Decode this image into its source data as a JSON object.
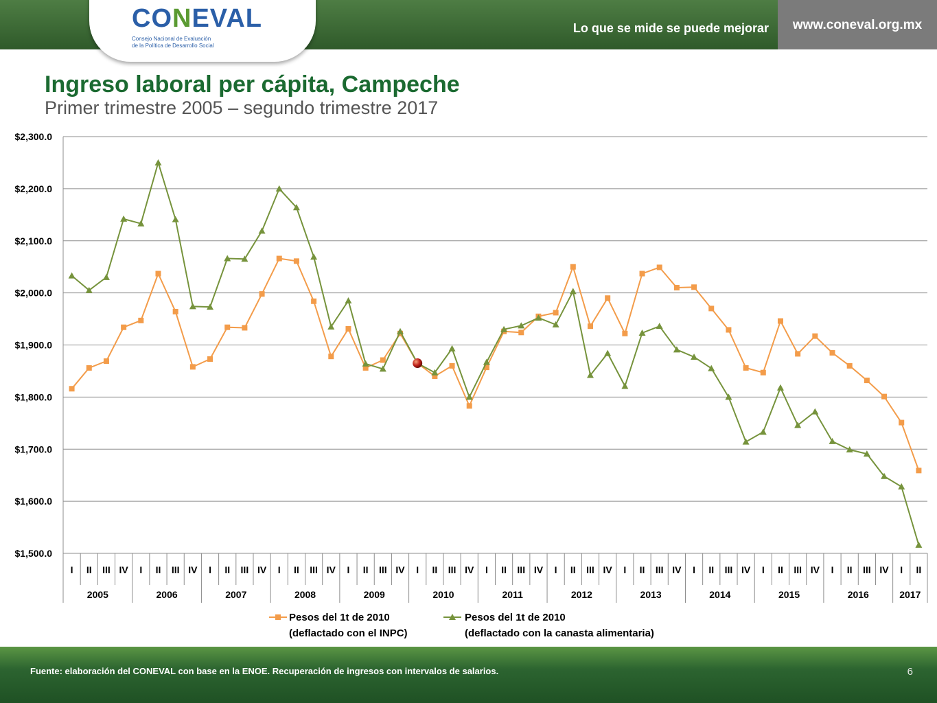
{
  "header": {
    "logo_text_a": "CO",
    "logo_text_b": "N",
    "logo_text_c": "EVAL",
    "logo_subtitle_1": "Consejo Nacional de Evaluación",
    "logo_subtitle_2": "de la Política de Desarrollo Social",
    "slogan": "Lo que se mide se puede mejorar",
    "url": "www.coneval.org.mx"
  },
  "slide": {
    "title": "Ingreso laboral per cápita, Campeche",
    "subtitle": "Primer trimestre 2005 – segundo trimestre 2017",
    "source": "Fuente: elaboración del CONEVAL con base en la ENOE. Recuperación de ingresos con intervalos de salarios.",
    "page_number": "6"
  },
  "colors": {
    "inpc": "#f39c4a",
    "canasta": "#76933c",
    "marker_point": "#c0201a"
  },
  "chart_data": {
    "type": "line",
    "ylim": [
      1500,
      2300
    ],
    "yticks": [
      "$1,500.0",
      "$1,600.0",
      "$1,700.0",
      "$1,800.0",
      "$1,900.0",
      "$2,000.0",
      "$2,100.0",
      "$2,200.0",
      "$2,300.0"
    ],
    "ytick_values": [
      1500,
      1600,
      1700,
      1800,
      1900,
      2000,
      2100,
      2200,
      2300
    ],
    "grid": true,
    "legend_position": "bottom",
    "quarters": [
      "I",
      "II",
      "III",
      "IV",
      "I",
      "II",
      "III",
      "IV",
      "I",
      "II",
      "III",
      "IV",
      "I",
      "II",
      "III",
      "IV",
      "I",
      "II",
      "III",
      "IV",
      "I",
      "II",
      "III",
      "IV",
      "I",
      "II",
      "III",
      "IV",
      "I",
      "II",
      "III",
      "IV",
      "I",
      "II",
      "III",
      "IV",
      "I",
      "II",
      "III",
      "IV",
      "I",
      "II",
      "III",
      "IV",
      "I",
      "II",
      "III",
      "IV",
      "I",
      "II"
    ],
    "years": [
      {
        "label": "2005",
        "span": 4
      },
      {
        "label": "2006",
        "span": 4
      },
      {
        "label": "2007",
        "span": 4
      },
      {
        "label": "2008",
        "span": 4
      },
      {
        "label": "2009",
        "span": 4
      },
      {
        "label": "2010",
        "span": 4
      },
      {
        "label": "2011",
        "span": 4
      },
      {
        "label": "2012",
        "span": 4
      },
      {
        "label": "2013",
        "span": 4
      },
      {
        "label": "2014",
        "span": 4
      },
      {
        "label": "2015",
        "span": 4
      },
      {
        "label": "2016",
        "span": 4
      },
      {
        "label": "2017",
        "span": 2
      }
    ],
    "series": [
      {
        "name_line1": "Pesos del 1t de 2010",
        "name_line2": "(deflactado con el INPC)",
        "marker": "square",
        "values": [
          1816,
          1856,
          1869,
          1934,
          1947,
          2037,
          1964,
          1858,
          1873,
          1934,
          1933,
          1998,
          2066,
          2061,
          1984,
          1878,
          1931,
          1856,
          1871,
          1922,
          1865,
          1840,
          1860,
          1783,
          1857,
          1926,
          1924,
          1955,
          1962,
          2050,
          1936,
          1990,
          1922,
          2037,
          2049,
          2010,
          2011,
          1970,
          1929,
          1856,
          1847,
          1946,
          1883,
          1917,
          1885,
          1860,
          1832,
          1801,
          1751,
          1659
        ]
      },
      {
        "name_line1": "Pesos del 1t de 2010",
        "name_line2": "(deflactado con la canasta alimentaria)",
        "marker": "triangle",
        "values": [
          2033,
          2005,
          2030,
          2142,
          2133,
          2250,
          2141,
          1974,
          1973,
          2066,
          2065,
          2119,
          2200,
          2164,
          2069,
          1935,
          1985,
          1864,
          1854,
          1926,
          1865,
          1847,
          1893,
          1800,
          1867,
          1930,
          1937,
          1952,
          1939,
          2003,
          1842,
          1884,
          1821,
          1923,
          1936,
          1891,
          1877,
          1855,
          1800,
          1714,
          1733,
          1818,
          1746,
          1772,
          1715,
          1699,
          1691,
          1648,
          1628,
          1516
        ]
      }
    ],
    "highlight_point": {
      "x_index": 20,
      "value": 1865
    }
  }
}
